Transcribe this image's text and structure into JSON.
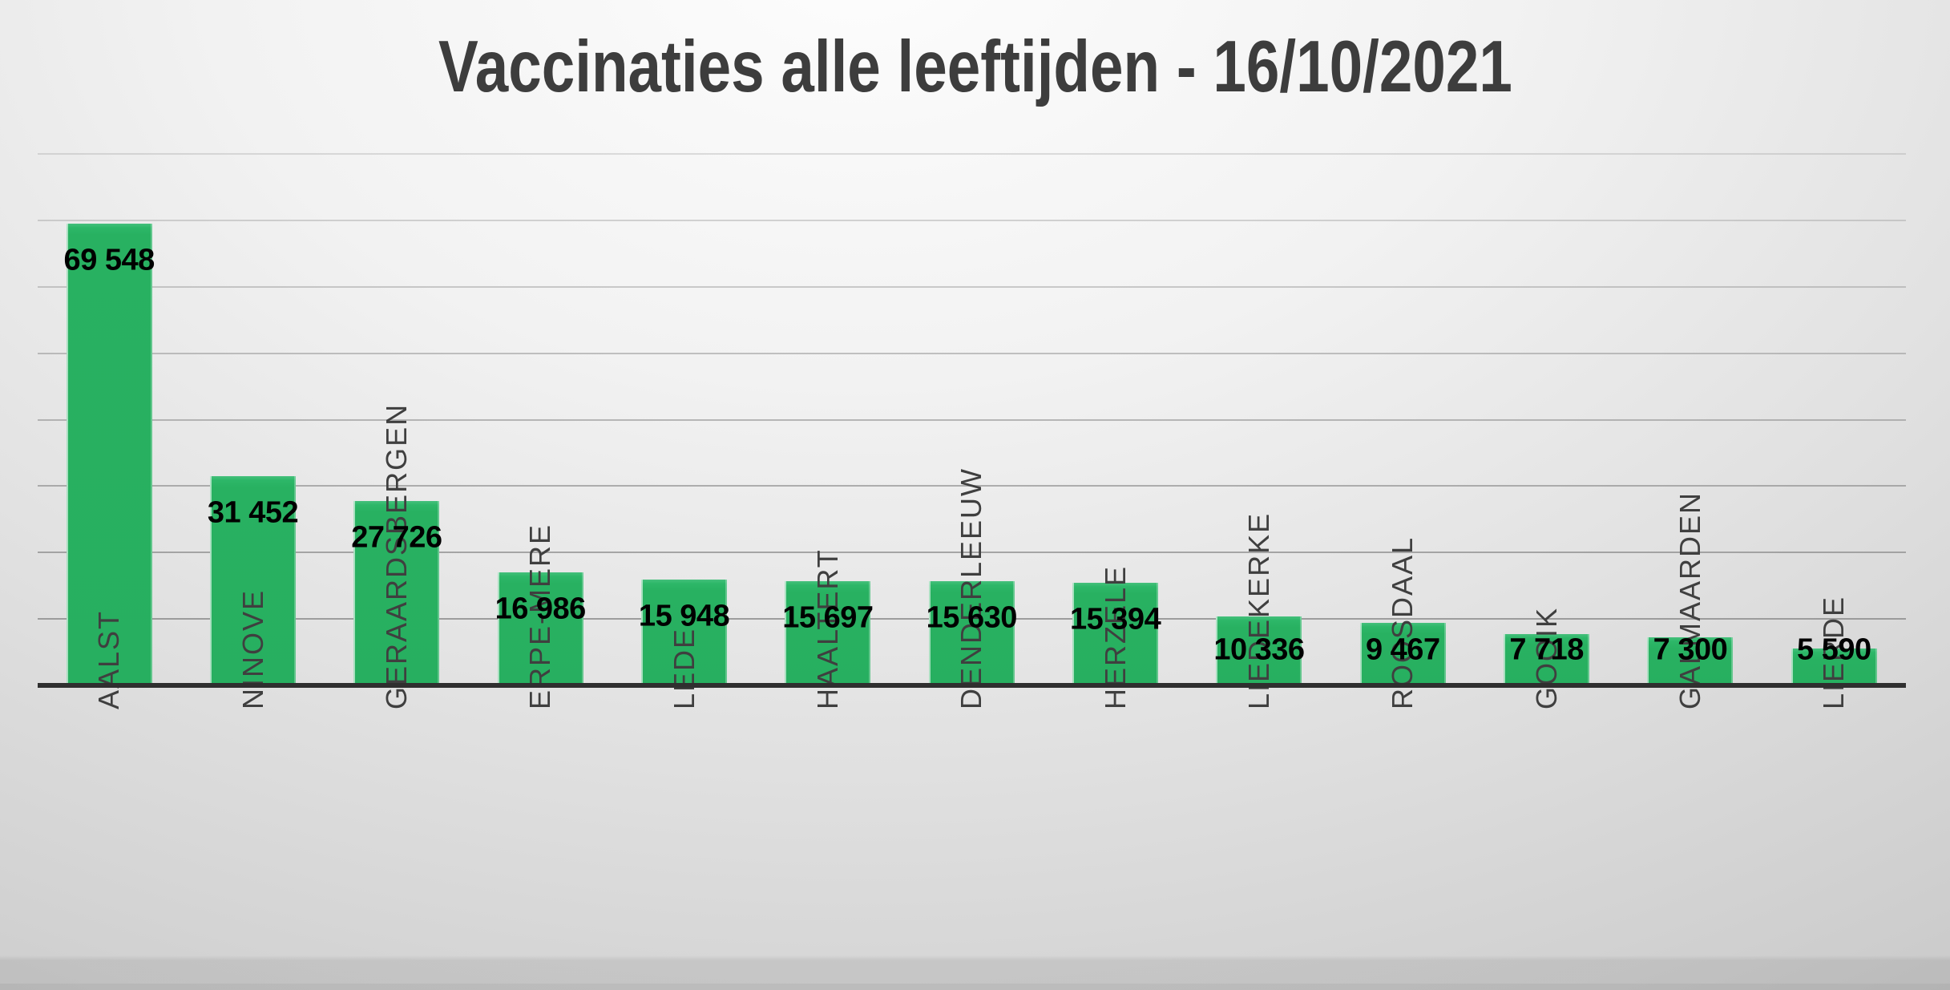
{
  "chart_data": {
    "type": "bar",
    "title": "Vaccinaties alle leeftijden - 16/10/2021",
    "categories": [
      "AALST",
      "NINOVE",
      "GERAARDSBERGEN",
      "ERPE-MERE",
      "LEDE",
      "HAALTERT",
      "DENDERLEEUW",
      "HERZELE",
      "LIEDEKERKE",
      "ROOSDAAL",
      "GOOIK",
      "GALMAARDEN",
      "LIERDE"
    ],
    "values": [
      69548,
      31452,
      27726,
      16986,
      15948,
      15697,
      15630,
      15394,
      10336,
      9467,
      7718,
      7300,
      5590
    ],
    "value_labels": [
      "69 548",
      "31 452",
      "27 726",
      "16 986",
      "15 948",
      "15 697",
      "15 630",
      "15 394",
      "10 336",
      "9 467",
      "7 718",
      "7 300",
      "5 590"
    ],
    "xlabel": "",
    "ylabel": "",
    "ylim": [
      0,
      80000
    ],
    "gridline_interval": 10000,
    "grid": true,
    "legend_position": "none",
    "y_tick_labels_visible": false,
    "data_label_position": "inside-end",
    "category_label_rotation": "rotate-up-90"
  },
  "colors": {
    "bar": "#28b161",
    "value_label": "#000000",
    "category_label": "#3f3f3f",
    "title": "#3d3d3d",
    "gridline": "#8f8f8f",
    "axis_line": "#2f2f2f",
    "background_edge": "#c2c2c2",
    "background_center": "#fdfdfd"
  }
}
